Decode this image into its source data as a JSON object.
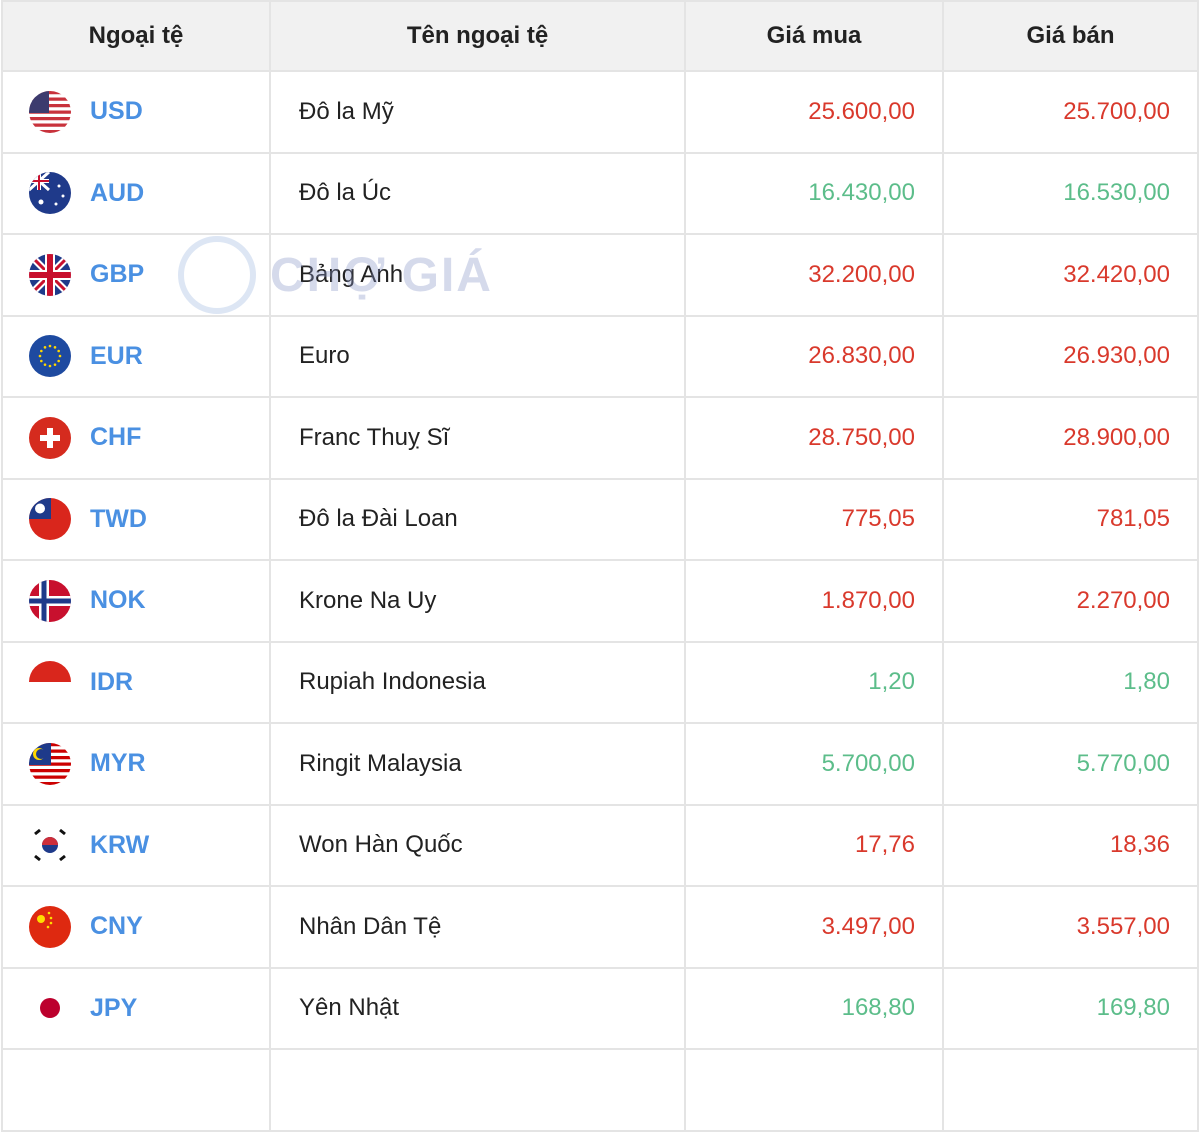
{
  "headers": [
    "Ngoại tệ",
    "Tên ngoại tệ",
    "Giá mua",
    "Giá bán"
  ],
  "colors": {
    "code": "#4a90e2",
    "increase": "#d9392c",
    "decrease": "#5cbd8a"
  },
  "watermark": "CHỢ GIÁ",
  "rows": [
    {
      "code": "USD",
      "name": "Đô la Mỹ",
      "buy": "25.600,00",
      "sell": "25.700,00",
      "trend": "up",
      "flag": "us-flag-icon"
    },
    {
      "code": "AUD",
      "name": "Đô la Úc",
      "buy": "16.430,00",
      "sell": "16.530,00",
      "trend": "down",
      "flag": "au-flag-icon"
    },
    {
      "code": "GBP",
      "name": "Bảng Anh",
      "buy": "32.200,00",
      "sell": "32.420,00",
      "trend": "up",
      "flag": "gb-flag-icon"
    },
    {
      "code": "EUR",
      "name": "Euro",
      "buy": "26.830,00",
      "sell": "26.930,00",
      "trend": "up",
      "flag": "eu-flag-icon"
    },
    {
      "code": "CHF",
      "name": "Franc Thuỵ Sĩ",
      "buy": "28.750,00",
      "sell": "28.900,00",
      "trend": "up",
      "flag": "ch-flag-icon"
    },
    {
      "code": "TWD",
      "name": "Đô la Đài Loan",
      "buy": "775,05",
      "sell": "781,05",
      "trend": "up",
      "flag": "tw-flag-icon"
    },
    {
      "code": "NOK",
      "name": "Krone Na Uy",
      "buy": "1.870,00",
      "sell": "2.270,00",
      "trend": "up",
      "flag": "no-flag-icon"
    },
    {
      "code": "IDR",
      "name": "Rupiah Indonesia",
      "buy": "1,20",
      "sell": "1,80",
      "trend": "down",
      "flag": "id-flag-icon"
    },
    {
      "code": "MYR",
      "name": "Ringit Malaysia",
      "buy": "5.700,00",
      "sell": "5.770,00",
      "trend": "down",
      "flag": "my-flag-icon"
    },
    {
      "code": "KRW",
      "name": "Won Hàn Quốc",
      "buy": "17,76",
      "sell": "18,36",
      "trend": "up",
      "flag": "kr-flag-icon"
    },
    {
      "code": "CNY",
      "name": "Nhân Dân Tệ",
      "buy": "3.497,00",
      "sell": "3.557,00",
      "trend": "up",
      "flag": "cn-flag-icon"
    },
    {
      "code": "JPY",
      "name": "Yên Nhật",
      "buy": "168,80",
      "sell": "169,80",
      "trend": "down",
      "flag": "jp-flag-icon"
    }
  ]
}
